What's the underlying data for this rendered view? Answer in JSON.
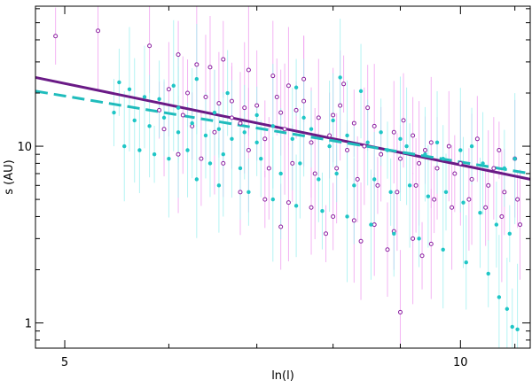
{
  "chart_data": {
    "type": "scatter",
    "title": "",
    "xlabel": "ln(l)",
    "ylabel": "s (AU)",
    "xscale": "log",
    "yscale": "log",
    "xlim": [
      4.75,
      11.3
    ],
    "ylim": [
      0.72,
      62
    ],
    "x_ticks": [
      {
        "value": 5,
        "label": "5"
      },
      {
        "value": 10,
        "label": "10"
      }
    ],
    "y_ticks": [
      {
        "value": 1,
        "label": "1"
      },
      {
        "value": 10,
        "label": "10"
      }
    ],
    "grid": false,
    "legend": "none",
    "colors": {
      "open_points": "#8b1fa0",
      "open_errorbars": "#f0a0f0",
      "filled_points": "#1fc6c6",
      "filled_errorbars": "#a0f0f0",
      "solid_fit": "#6a1a86",
      "dashed_fit": "#1fbcbc"
    },
    "fits": [
      {
        "style": "solid",
        "x": [
          4.75,
          11.3
        ],
        "y": [
          24.5,
          6.5
        ]
      },
      {
        "style": "dashed",
        "x": [
          4.75,
          11.3
        ],
        "y": [
          20.5,
          7.0
        ]
      }
    ],
    "series": [
      {
        "marker": "open-circle",
        "points": [
          [
            4.92,
            42.0
          ],
          [
            5.3,
            45.0
          ],
          [
            5.8,
            37.0
          ],
          [
            6.1,
            33.0
          ],
          [
            6.3,
            29.0
          ],
          [
            6.45,
            28.0
          ],
          [
            6.6,
            31.0
          ],
          [
            6.9,
            27.0
          ],
          [
            7.2,
            25.0
          ],
          [
            7.6,
            24.0
          ],
          [
            8.15,
            22.5
          ],
          [
            7.4,
            22.0
          ],
          [
            6.0,
            21.0
          ],
          [
            6.2,
            20.0
          ],
          [
            6.4,
            19.0
          ],
          [
            6.55,
            17.5
          ],
          [
            6.7,
            18.0
          ],
          [
            6.85,
            16.5
          ],
          [
            7.0,
            17.0
          ],
          [
            7.3,
            15.5
          ],
          [
            7.5,
            16.0
          ],
          [
            7.8,
            14.5
          ],
          [
            8.0,
            15.0
          ],
          [
            8.3,
            13.5
          ],
          [
            8.6,
            13.0
          ],
          [
            8.9,
            12.0
          ],
          [
            9.2,
            11.5
          ],
          [
            9.5,
            10.5
          ],
          [
            9.8,
            10.0
          ],
          [
            10.3,
            11.0
          ],
          [
            10.7,
            9.5
          ],
          [
            11.0,
            8.5
          ],
          [
            5.95,
            12.5
          ],
          [
            6.25,
            13.0
          ],
          [
            6.5,
            12.0
          ],
          [
            6.8,
            13.5
          ],
          [
            7.1,
            11.0
          ],
          [
            7.35,
            12.5
          ],
          [
            7.7,
            10.5
          ],
          [
            7.95,
            11.5
          ],
          [
            8.2,
            9.5
          ],
          [
            8.45,
            10.0
          ],
          [
            8.7,
            9.0
          ],
          [
            9.0,
            8.5
          ],
          [
            9.3,
            8.0
          ],
          [
            9.6,
            7.5
          ],
          [
            9.9,
            7.0
          ],
          [
            10.2,
            6.5
          ],
          [
            10.5,
            6.0
          ],
          [
            10.8,
            5.5
          ],
          [
            11.05,
            5.0
          ],
          [
            6.1,
            9.0
          ],
          [
            6.35,
            8.5
          ],
          [
            6.6,
            8.0
          ],
          [
            6.9,
            9.5
          ],
          [
            7.15,
            7.5
          ],
          [
            7.45,
            8.0
          ],
          [
            7.75,
            7.0
          ],
          [
            8.05,
            7.5
          ],
          [
            8.35,
            6.5
          ],
          [
            8.65,
            6.0
          ],
          [
            8.95,
            5.5
          ],
          [
            9.25,
            6.0
          ],
          [
            9.55,
            5.0
          ],
          [
            9.85,
            4.5
          ],
          [
            10.15,
            5.0
          ],
          [
            10.45,
            4.5
          ],
          [
            10.75,
            4.0
          ],
          [
            11.1,
            3.6
          ],
          [
            6.8,
            5.5
          ],
          [
            7.1,
            5.0
          ],
          [
            7.4,
            4.8
          ],
          [
            7.7,
            4.5
          ],
          [
            8.0,
            4.0
          ],
          [
            8.3,
            3.8
          ],
          [
            8.6,
            3.6
          ],
          [
            8.9,
            3.3
          ],
          [
            9.2,
            3.0
          ],
          [
            9.5,
            2.8
          ],
          [
            7.3,
            3.5
          ],
          [
            7.9,
            3.2
          ],
          [
            8.4,
            2.9
          ],
          [
            8.8,
            2.6
          ],
          [
            9.35,
            2.4
          ],
          [
            9.0,
            1.15
          ],
          [
            6.7,
            14.5
          ],
          [
            7.25,
            19.0
          ],
          [
            7.6,
            18.0
          ],
          [
            8.1,
            17.0
          ],
          [
            8.5,
            16.5
          ],
          [
            5.9,
            16.0
          ],
          [
            6.15,
            15.0
          ],
          [
            9.05,
            14.0
          ],
          [
            9.4,
            9.5
          ],
          [
            10.0,
            8.0
          ],
          [
            10.6,
            7.5
          ]
        ]
      },
      {
        "marker": "filled-circle",
        "points": [
          [
            5.5,
            23.0
          ],
          [
            5.6,
            21.0
          ],
          [
            5.75,
            19.0
          ],
          [
            5.9,
            18.5
          ],
          [
            6.05,
            22.0
          ],
          [
            6.3,
            24.0
          ],
          [
            6.65,
            20.0
          ],
          [
            7.5,
            21.5
          ],
          [
            8.1,
            24.5
          ],
          [
            8.4,
            20.5
          ],
          [
            5.45,
            15.5
          ],
          [
            5.65,
            14.0
          ],
          [
            5.8,
            13.0
          ],
          [
            5.95,
            14.5
          ],
          [
            6.1,
            12.0
          ],
          [
            6.25,
            13.5
          ],
          [
            6.4,
            11.5
          ],
          [
            6.55,
            12.5
          ],
          [
            6.7,
            11.0
          ],
          [
            6.85,
            12.0
          ],
          [
            7.0,
            10.5
          ],
          [
            7.2,
            13.0
          ],
          [
            7.45,
            11.0
          ],
          [
            7.7,
            12.5
          ],
          [
            7.95,
            10.0
          ],
          [
            8.2,
            11.5
          ],
          [
            8.5,
            10.5
          ],
          [
            8.8,
            9.5
          ],
          [
            9.1,
            10.0
          ],
          [
            9.4,
            9.0
          ],
          [
            9.7,
            8.5
          ],
          [
            10.0,
            9.5
          ],
          [
            10.4,
            8.0
          ],
          [
            10.8,
            7.5
          ],
          [
            11.0,
            8.5
          ],
          [
            5.55,
            10.0
          ],
          [
            5.7,
            9.5
          ],
          [
            5.85,
            9.0
          ],
          [
            6.0,
            8.5
          ],
          [
            6.2,
            9.5
          ],
          [
            6.45,
            8.0
          ],
          [
            6.6,
            9.0
          ],
          [
            6.8,
            7.5
          ],
          [
            7.05,
            8.5
          ],
          [
            7.3,
            7.0
          ],
          [
            7.55,
            8.0
          ],
          [
            7.8,
            6.5
          ],
          [
            8.05,
            7.0
          ],
          [
            8.3,
            6.0
          ],
          [
            8.6,
            6.5
          ],
          [
            8.85,
            5.5
          ],
          [
            9.15,
            6.0
          ],
          [
            9.45,
            5.2
          ],
          [
            9.75,
            5.5
          ],
          [
            10.05,
            4.8
          ],
          [
            10.35,
            4.2
          ],
          [
            10.65,
            3.6
          ],
          [
            10.9,
            3.2
          ],
          [
            6.3,
            6.5
          ],
          [
            6.55,
            6.0
          ],
          [
            6.9,
            5.5
          ],
          [
            7.2,
            5.0
          ],
          [
            7.5,
            4.6
          ],
          [
            7.85,
            4.3
          ],
          [
            8.2,
            4.0
          ],
          [
            8.55,
            3.6
          ],
          [
            8.9,
            3.2
          ],
          [
            9.3,
            3.0
          ],
          [
            9.7,
            2.6
          ],
          [
            10.1,
            2.2
          ],
          [
            10.5,
            1.9
          ],
          [
            10.7,
            1.4
          ],
          [
            10.85,
            1.2
          ],
          [
            10.95,
            0.95
          ],
          [
            11.05,
            0.92
          ],
          [
            6.1,
            16.5
          ],
          [
            6.5,
            15.5
          ],
          [
            7.0,
            15.0
          ],
          [
            7.6,
            14.5
          ],
          [
            8.0,
            14.0
          ],
          [
            8.7,
            12.0
          ],
          [
            9.0,
            11.0
          ],
          [
            9.6,
            10.5
          ],
          [
            10.2,
            10.0
          ]
        ]
      }
    ]
  }
}
